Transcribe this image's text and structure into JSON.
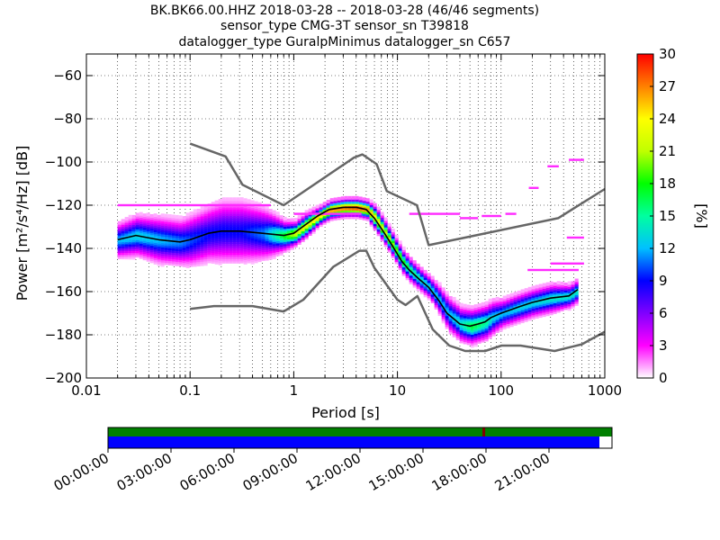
{
  "title": {
    "line1": "BK.BK66.00.HHZ   2018-03-28 -- 2018-03-28  (46/46 segments)",
    "line2": "sensor_type CMG-3T sensor_sn T39818",
    "line3": "datalogger_type GuralpMinimus datalogger_sn C657"
  },
  "chart_data": {
    "type": "heatmap",
    "xlabel": "Period [s]",
    "ylabel": "Power [m²/s⁴/Hz] [dB]",
    "x_scale": "log",
    "xlim": [
      0.01,
      1000
    ],
    "ylim": [
      -200,
      -50
    ],
    "x_ticks": [
      0.01,
      0.1,
      1,
      10,
      100,
      1000
    ],
    "x_tick_labels": [
      "0.01",
      "0.1",
      "1",
      "10",
      "100",
      "1000"
    ],
    "y_ticks": [
      -200,
      -180,
      -160,
      -140,
      -120,
      -100,
      -80,
      -60
    ],
    "y_tick_labels": [
      "−200",
      "−180",
      "−160",
      "−140",
      "−120",
      "−100",
      "−80",
      "−60"
    ],
    "colorbar": {
      "label": "[%]",
      "range": [
        0,
        30
      ],
      "ticks": [
        0,
        3,
        6,
        9,
        12,
        15,
        18,
        21,
        24,
        27,
        30
      ],
      "tick_labels": [
        "0",
        "3",
        "6",
        "9",
        "12",
        "15",
        "18",
        "21",
        "24",
        "27",
        "30"
      ],
      "colormap": [
        "#ffffff",
        "#ff00ff",
        "#8000ff",
        "#0000ff",
        "#00c0ff",
        "#00ffa0",
        "#00ff00",
        "#c0ff00",
        "#ffff00",
        "#ff8000",
        "#ff0000"
      ]
    },
    "series": [
      {
        "name": "NHNM",
        "color": "#666666",
        "x": [
          0.1,
          0.22,
          0.32,
          0.8,
          3.8,
          4.6,
          6.3,
          7.9,
          15.4,
          20,
          354.8,
          1000
        ],
        "y": [
          -91.5,
          -97.4,
          -110.5,
          -120,
          -98,
          -96.5,
          -101,
          -113.5,
          -120,
          -138.5,
          -126,
          -112.5
        ]
      },
      {
        "name": "NLNM",
        "color": "#666666",
        "x": [
          0.1,
          0.17,
          0.4,
          0.8,
          1.24,
          2.4,
          4.3,
          5,
          6,
          10,
          12,
          15.6,
          21.9,
          31.6,
          45,
          70,
          101,
          154,
          328,
          600,
          1000
        ],
        "y": [
          -168,
          -166.7,
          -166.7,
          -169.2,
          -163.7,
          -148.6,
          -141.1,
          -141.1,
          -149,
          -163.8,
          -166.2,
          -162.1,
          -177.5,
          -185,
          -187.5,
          -187.5,
          -185,
          -185,
          -187.5,
          -184.4,
          -178.6
        ]
      },
      {
        "name": "mode",
        "color": "#000000",
        "x": [
          0.02,
          0.03,
          0.05,
          0.08,
          0.1,
          0.15,
          0.2,
          0.3,
          0.5,
          0.8,
          1.0,
          1.3,
          1.7,
          2.2,
          3.0,
          4.0,
          5.0,
          6.0,
          7.5,
          9.0,
          11,
          13,
          16,
          20,
          25,
          30,
          40,
          50,
          60,
          70,
          80,
          100,
          150,
          200,
          300,
          450,
          550
        ],
        "y": [
          -136,
          -134,
          -136,
          -137,
          -136,
          -133,
          -132,
          -132,
          -133,
          -134,
          -133,
          -129,
          -125,
          -122,
          -121,
          -121,
          -122,
          -126,
          -133,
          -139,
          -146,
          -150,
          -154,
          -158,
          -164,
          -170,
          -175,
          -176,
          -175,
          -174,
          -172,
          -170,
          -167,
          -165,
          -163,
          -162,
          -159
        ]
      }
    ],
    "density": {
      "x": [
        0.02,
        0.03,
        0.05,
        0.08,
        0.1,
        0.15,
        0.2,
        0.3,
        0.5,
        0.8,
        1.0,
        1.3,
        1.7,
        2.2,
        3.0,
        4.0,
        5.0,
        6.0,
        7.5,
        9.0,
        11,
        13,
        16,
        20,
        25,
        30,
        40,
        50,
        60,
        70,
        80,
        100,
        150,
        200,
        300,
        450,
        550
      ],
      "spread": [
        6,
        7,
        8,
        8,
        9,
        10,
        11,
        11,
        9,
        5,
        4,
        4,
        3,
        3,
        3,
        3,
        3,
        4,
        4,
        4,
        4,
        4,
        4,
        4,
        5,
        6,
        6,
        6,
        6,
        6,
        6,
        5,
        5,
        5,
        5,
        4,
        4
      ],
      "peak_percent": [
        12,
        13,
        12,
        11,
        10,
        9,
        9,
        9,
        11,
        18,
        22,
        23,
        25,
        27,
        28,
        29,
        27,
        24,
        22,
        20,
        18,
        16,
        14,
        13,
        12,
        12,
        14,
        17,
        16,
        15,
        13,
        12,
        13,
        13,
        14,
        14,
        14
      ],
      "outliers": [
        {
          "x": [
            0.02,
            0.6
          ],
          "y": -120
        },
        {
          "x": [
            1.0,
            4.5
          ],
          "y": -124
        },
        {
          "x": [
            13,
            40
          ],
          "y": -124
        },
        {
          "x": [
            40,
            60
          ],
          "y": -126
        },
        {
          "x": [
            65,
            100
          ],
          "y": -125
        },
        {
          "x": [
            110,
            140
          ],
          "y": -124
        },
        {
          "x": [
            185,
            230
          ],
          "y": -112
        },
        {
          "x": [
            280,
            360
          ],
          "y": -102
        },
        {
          "x": [
            450,
            630
          ],
          "y": -99
        },
        {
          "x": [
            430,
            630
          ],
          "y": -135
        },
        {
          "x": [
            300,
            630
          ],
          "y": -147
        },
        {
          "x": [
            180,
            560
          ],
          "y": -150
        }
      ]
    }
  },
  "timeline": {
    "tick_labels": [
      "00:00:00",
      "03:00:00",
      "06:00:00",
      "09:00:00",
      "12:00:00",
      "15:00:00",
      "18:00:00",
      "21:00:00"
    ],
    "coverage_color": "#008000",
    "data_color": "#0000ff",
    "gap_color": "#800000",
    "data_coverage_fraction": 0.975,
    "gap_position_fraction": 0.743
  }
}
